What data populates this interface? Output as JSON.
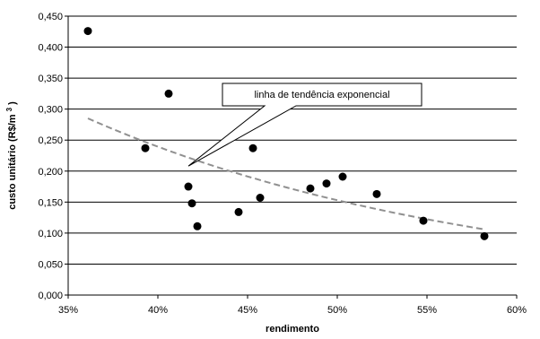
{
  "chart_data": {
    "type": "scatter",
    "title": "",
    "xlabel": "rendimento",
    "ylabel_main": "custo unitário (R$/m",
    "ylabel_sup": "3",
    "ylabel_close": ")",
    "xlim": [
      0.35,
      0.6
    ],
    "ylim": [
      0.0,
      0.45
    ],
    "x_ticks": [
      0.35,
      0.4,
      0.45,
      0.5,
      0.55,
      0.6
    ],
    "x_tick_labels": [
      "35%",
      "40%",
      "45%",
      "50%",
      "55%",
      "60%"
    ],
    "y_ticks": [
      0.0,
      0.05,
      0.1,
      0.15,
      0.2,
      0.25,
      0.3,
      0.35,
      0.4,
      0.45
    ],
    "y_tick_labels": [
      "0,000",
      "0,050",
      "0,100",
      "0,150",
      "0,200",
      "0,250",
      "0,300",
      "0,350",
      "0,400",
      "0,450"
    ],
    "grid": "horizontal",
    "points": [
      {
        "x": 0.361,
        "y": 0.426
      },
      {
        "x": 0.393,
        "y": 0.237
      },
      {
        "x": 0.406,
        "y": 0.325
      },
      {
        "x": 0.417,
        "y": 0.175
      },
      {
        "x": 0.419,
        "y": 0.148
      },
      {
        "x": 0.422,
        "y": 0.111
      },
      {
        "x": 0.445,
        "y": 0.134
      },
      {
        "x": 0.453,
        "y": 0.237
      },
      {
        "x": 0.457,
        "y": 0.157
      },
      {
        "x": 0.485,
        "y": 0.172
      },
      {
        "x": 0.494,
        "y": 0.18
      },
      {
        "x": 0.503,
        "y": 0.191
      },
      {
        "x": 0.522,
        "y": 0.163
      },
      {
        "x": 0.548,
        "y": 0.12
      },
      {
        "x": 0.582,
        "y": 0.095
      }
    ],
    "trendline": {
      "type": "exponential",
      "x_start": 0.361,
      "x_end": 0.582,
      "y_start": 0.285,
      "y_end": 0.106,
      "color": "#909090"
    },
    "annotation": {
      "text": "linha de tendência exponencial",
      "pointer_x": 0.417,
      "pointer_y": 0.208
    },
    "marker_color": "#000000",
    "grid_color": "#000000"
  }
}
